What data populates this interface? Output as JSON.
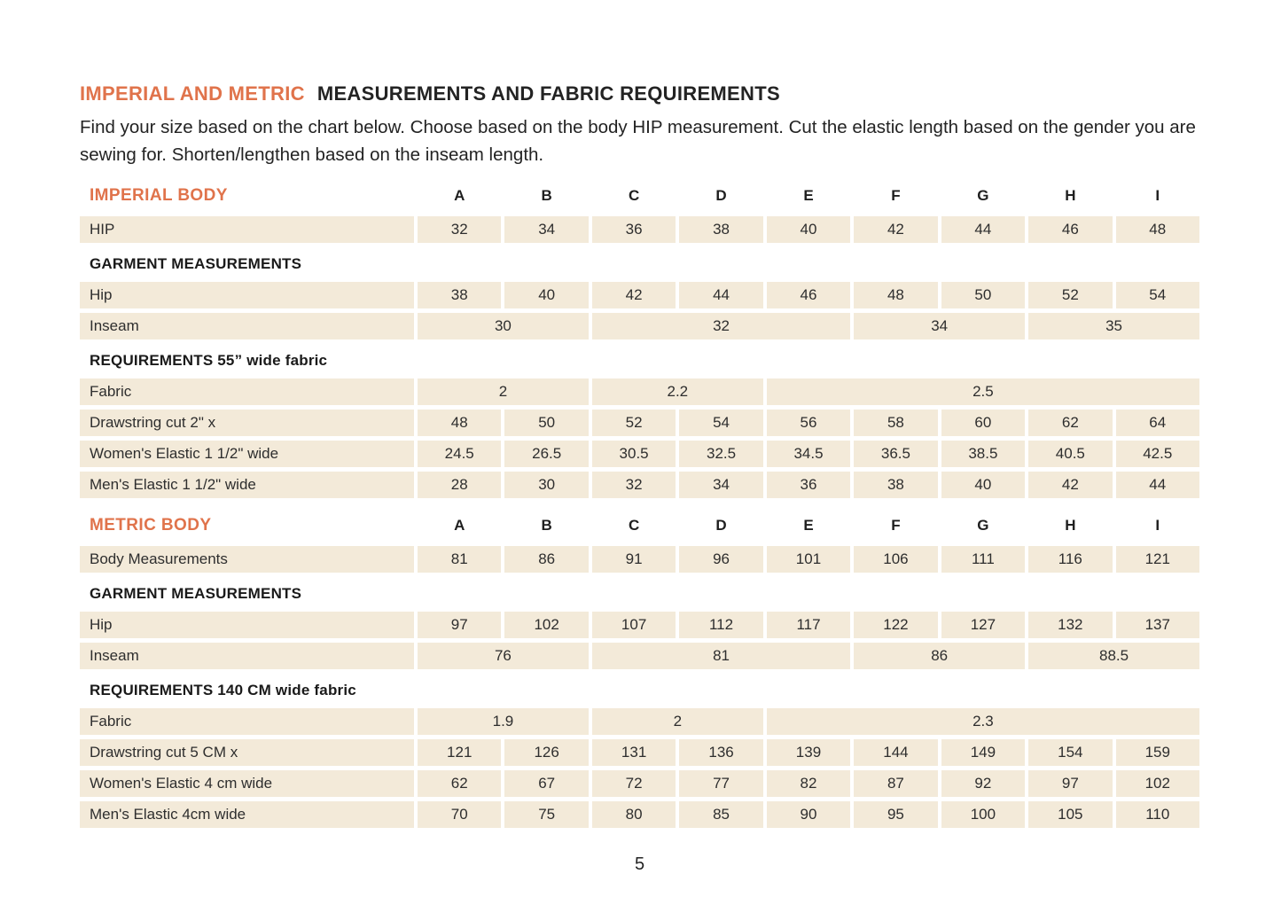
{
  "header": {
    "title_accent": "IMPERIAL AND METRIC",
    "title_rest": "MEASUREMENTS AND FABRIC REQUIREMENTS",
    "intro": "Find your size based on the chart below. Choose based on the body HIP measurement. Cut the elastic length based on the gender you are sewing for. Shorten/lengthen based on the inseam length."
  },
  "colors": {
    "accent": "#E0734B",
    "cell_bg": "#F3EAD9",
    "text": "#2E2E2E"
  },
  "tables": [
    {
      "id": "imperial",
      "title": "IMPERIAL BODY",
      "columns": [
        "A",
        "B",
        "C",
        "D",
        "E",
        "F",
        "G",
        "H",
        "I"
      ],
      "rows": [
        {
          "type": "data",
          "label": "HIP",
          "values": [
            "32",
            "34",
            "36",
            "38",
            "40",
            "42",
            "44",
            "46",
            "48"
          ]
        },
        {
          "type": "section",
          "label": "GARMENT MEASUREMENTS"
        },
        {
          "type": "data",
          "label": "Hip",
          "values": [
            "38",
            "40",
            "42",
            "44",
            "46",
            "48",
            "50",
            "52",
            "54"
          ]
        },
        {
          "type": "merged",
          "label": "Inseam",
          "cells": [
            {
              "span": 2,
              "value": "30"
            },
            {
              "span": 3,
              "value": "32"
            },
            {
              "span": 2,
              "value": "34"
            },
            {
              "span": 2,
              "value": "35"
            }
          ]
        },
        {
          "type": "section",
          "label": "REQUIREMENTS 55” wide fabric"
        },
        {
          "type": "merged",
          "label": "Fabric",
          "cells": [
            {
              "span": 2,
              "value": "2"
            },
            {
              "span": 2,
              "value": "2.2"
            },
            {
              "span": 5,
              "value": "2.5"
            }
          ]
        },
        {
          "type": "data",
          "label": "Drawstring cut 2\" x",
          "values": [
            "48",
            "50",
            "52",
            "54",
            "56",
            "58",
            "60",
            "62",
            "64"
          ]
        },
        {
          "type": "data",
          "label": "Women's Elastic 1 1/2\" wide",
          "values": [
            "24.5",
            "26.5",
            "30.5",
            "32.5",
            "34.5",
            "36.5",
            "38.5",
            "40.5",
            "42.5"
          ]
        },
        {
          "type": "data",
          "label": "Men's Elastic 1 1/2\" wide",
          "values": [
            "28",
            "30",
            "32",
            "34",
            "36",
            "38",
            "40",
            "42",
            "44"
          ]
        }
      ]
    },
    {
      "id": "metric",
      "title": "METRIC BODY",
      "columns": [
        "A",
        "B",
        "C",
        "D",
        "E",
        "F",
        "G",
        "H",
        "I"
      ],
      "rows": [
        {
          "type": "data",
          "label": "Body Measurements",
          "values": [
            "81",
            "86",
            "91",
            "96",
            "101",
            "106",
            "111",
            "116",
            "121"
          ]
        },
        {
          "type": "section",
          "label": "GARMENT MEASUREMENTS"
        },
        {
          "type": "data",
          "label": "Hip",
          "values": [
            "97",
            "102",
            "107",
            "112",
            "117",
            "122",
            "127",
            "132",
            "137"
          ]
        },
        {
          "type": "merged",
          "label": "Inseam",
          "cells": [
            {
              "span": 2,
              "value": "76"
            },
            {
              "span": 3,
              "value": "81"
            },
            {
              "span": 2,
              "value": "86"
            },
            {
              "span": 2,
              "value": "88.5"
            }
          ]
        },
        {
          "type": "section",
          "label": "REQUIREMENTS 140 CM wide fabric"
        },
        {
          "type": "merged",
          "label": "Fabric",
          "cells": [
            {
              "span": 2,
              "value": "1.9"
            },
            {
              "span": 2,
              "value": "2"
            },
            {
              "span": 5,
              "value": "2.3"
            }
          ]
        },
        {
          "type": "data",
          "label": "Drawstring cut 5 CM x",
          "values": [
            "121",
            "126",
            "131",
            "136",
            "139",
            "144",
            "149",
            "154",
            "159"
          ]
        },
        {
          "type": "data",
          "label": "Women's Elastic 4 cm wide",
          "values": [
            "62",
            "67",
            "72",
            "77",
            "82",
            "87",
            "92",
            "97",
            "102"
          ]
        },
        {
          "type": "data",
          "label": "Men's Elastic 4cm wide",
          "values": [
            "70",
            "75",
            "80",
            "85",
            "90",
            "95",
            "100",
            "105",
            "110"
          ]
        }
      ]
    }
  ],
  "footer": {
    "page_number": "5"
  }
}
